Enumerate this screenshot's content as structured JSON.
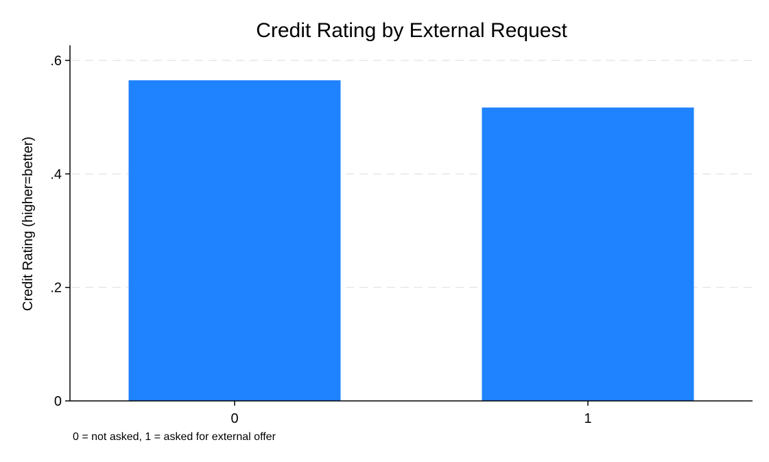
{
  "chart_data": {
    "type": "bar",
    "title": "Credit Rating by External Request",
    "xlabel": "",
    "ylabel": "Credit Rating (higher=better)",
    "categories": [
      "0",
      "1"
    ],
    "values": [
      0.565,
      0.517
    ],
    "ylim": [
      0,
      0.6
    ],
    "yticks": [
      0,
      0.2,
      0.4,
      0.6
    ],
    "ytick_labels": [
      "0",
      ".2",
      ".4",
      ".6"
    ],
    "grid": true,
    "bar_color": "#1f82ff",
    "note": "0 = not asked, 1 = asked for external offer"
  }
}
